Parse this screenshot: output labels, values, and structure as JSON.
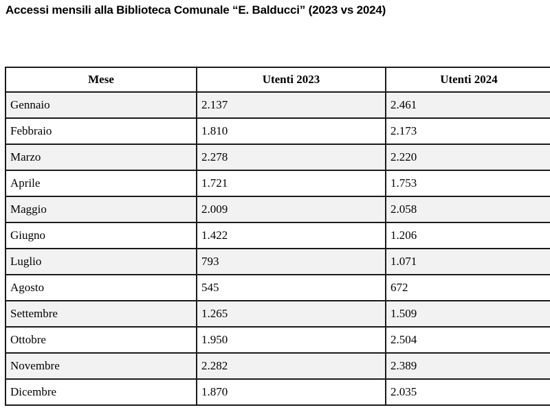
{
  "title": "Accessi mensili alla Biblioteca Comunale “E. Balducci” (2023 vs 2024)",
  "table": {
    "columns": [
      "Mese",
      "Utenti 2023",
      "Utenti 2024"
    ],
    "rows": [
      [
        "Gennaio",
        "2.137",
        "2.461"
      ],
      [
        "Febbraio",
        "1.810",
        "2.173"
      ],
      [
        "Marzo",
        "2.278",
        "2.220"
      ],
      [
        "Aprile",
        "1.721",
        "1.753"
      ],
      [
        "Maggio",
        "2.009",
        "2.058"
      ],
      [
        "Giugno",
        "1.422",
        "1.206"
      ],
      [
        "Luglio",
        "793",
        "1.071"
      ],
      [
        "Agosto",
        "545",
        "672"
      ],
      [
        "Settembre",
        "1.265",
        "1.509"
      ],
      [
        "Ottobre",
        "1.950",
        "2.504"
      ],
      [
        "Novembre",
        "2.282",
        "2.389"
      ],
      [
        "Dicembre",
        "1.870",
        "2.035"
      ]
    ]
  },
  "colors": {
    "row_alt": "#f2f2f2",
    "border": "#1a1a1a",
    "text": "#000000",
    "bg": "#ffffff"
  }
}
